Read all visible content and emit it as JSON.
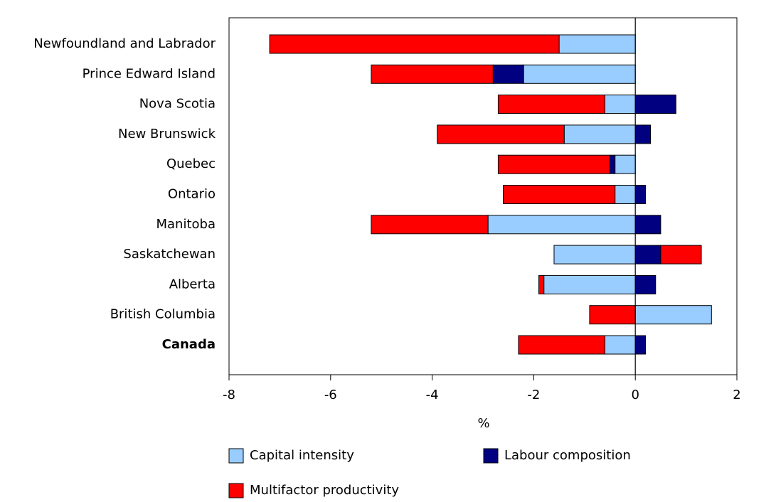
{
  "chart_data": {
    "type": "bar",
    "orientation": "horizontal",
    "stacked": true,
    "x_label": "%",
    "categories": [
      "Newfoundland and Labrador",
      "Prince Edward Island",
      "Nova Scotia",
      "New Brunswick",
      "Quebec",
      "Ontario",
      "Manitoba",
      "Saskatchewan",
      "Alberta",
      "British Columbia",
      "Canada"
    ],
    "series": [
      {
        "name": "Capital intensity",
        "color": "#99ccff",
        "values": [
          -1.5,
          -2.2,
          -0.6,
          -1.4,
          -0.4,
          -0.4,
          -2.9,
          -1.6,
          -1.8,
          1.5,
          -0.6
        ]
      },
      {
        "name": "Labour composition",
        "color": "#000080",
        "values": [
          0,
          -0.6,
          0.8,
          0.3,
          -0.1,
          0.2,
          0.5,
          0.5,
          0.4,
          0,
          0.2
        ]
      },
      {
        "name": "Multifactor productivity",
        "color": "#ff0000",
        "values": [
          -5.7,
          -2.4,
          -2.1,
          -2.5,
          -2.2,
          -2.2,
          -2.3,
          0.8,
          -0.1,
          -0.9,
          -1.7
        ]
      }
    ],
    "xlim": [
      -8,
      2
    ],
    "xticks": [
      -8,
      -6,
      -4,
      -2,
      0,
      2
    ]
  }
}
